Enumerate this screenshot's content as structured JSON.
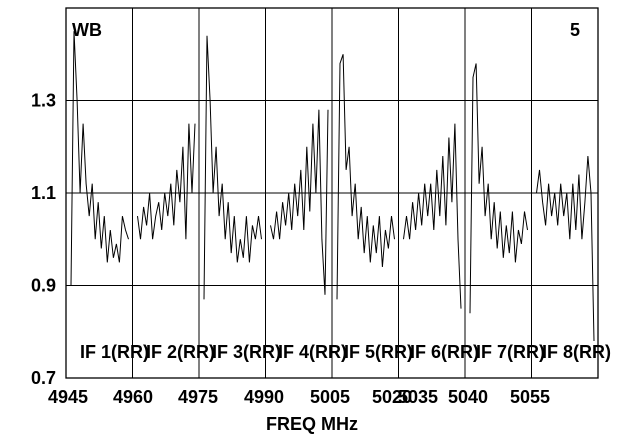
{
  "chart_data": {
    "type": "line",
    "title_left": "WB",
    "title_right": "5",
    "xlabel": "FREQ MHz",
    "ylabel": "",
    "ylim": [
      0.7,
      1.5
    ],
    "y_ticks": [
      "0.7",
      "0.9",
      "1.1",
      "1.3"
    ],
    "x_tick_labels": [
      "4945",
      "4960",
      "4975",
      "4990",
      "5005",
      "5020",
      "5035",
      "5040",
      "5055"
    ],
    "panels": [
      {
        "label": "IF 1(RR)",
        "values": [
          0.9,
          1.45,
          1.3,
          1.1,
          1.25,
          1.12,
          1.05,
          1.12,
          1.0,
          1.08,
          0.98,
          1.05,
          0.95,
          1.02,
          0.96,
          0.99,
          0.95,
          1.05,
          1.02,
          1.0
        ]
      },
      {
        "label": "IF 2(RR)",
        "values": [
          1.05,
          1.0,
          1.07,
          1.03,
          1.1,
          1.0,
          1.05,
          1.08,
          1.02,
          1.1,
          1.05,
          1.12,
          1.03,
          1.15,
          1.08,
          1.2,
          1.0,
          1.25,
          1.1,
          1.25
        ]
      },
      {
        "label": "IF 3(RR)",
        "values": [
          0.87,
          1.44,
          1.3,
          1.1,
          1.2,
          1.05,
          1.12,
          1.0,
          1.08,
          0.97,
          1.05,
          0.95,
          1.0,
          0.96,
          1.05,
          0.95,
          1.03,
          1.0,
          1.05,
          1.0
        ]
      },
      {
        "label": "IF 4(RR)",
        "values": [
          1.03,
          1.0,
          1.06,
          1.0,
          1.08,
          1.03,
          1.1,
          1.02,
          1.12,
          1.05,
          1.15,
          1.02,
          1.2,
          1.06,
          1.25,
          1.1,
          1.28,
          1.0,
          0.88,
          1.28
        ]
      },
      {
        "label": "IF 5(RR)",
        "values": [
          0.87,
          1.38,
          1.4,
          1.15,
          1.2,
          1.05,
          1.12,
          1.0,
          1.07,
          0.97,
          1.05,
          0.95,
          1.03,
          0.97,
          1.05,
          0.94,
          1.02,
          0.98,
          1.05,
          1.0
        ]
      },
      {
        "label": "IF 6(RR)",
        "values": [
          1.0,
          1.05,
          1.0,
          1.08,
          1.02,
          1.1,
          1.03,
          1.12,
          1.05,
          1.12,
          1.02,
          1.15,
          1.05,
          1.18,
          1.03,
          1.22,
          1.08,
          1.25,
          1.0,
          0.85
        ]
      },
      {
        "label": "IF 7(RR)",
        "values": [
          0.84,
          1.35,
          1.38,
          1.12,
          1.2,
          1.05,
          1.12,
          1.0,
          1.08,
          0.98,
          1.06,
          0.96,
          1.03,
          0.97,
          1.06,
          0.95,
          1.02,
          0.99,
          1.06,
          1.02
        ]
      },
      {
        "label": "IF 8(RR)",
        "values": [
          1.1,
          1.15,
          1.08,
          1.03,
          1.12,
          1.05,
          1.1,
          1.03,
          1.12,
          1.05,
          1.1,
          1.0,
          1.12,
          1.02,
          1.14,
          1.0,
          1.08,
          1.18,
          1.1,
          0.78
        ]
      }
    ],
    "grid": false,
    "legend": "none"
  }
}
